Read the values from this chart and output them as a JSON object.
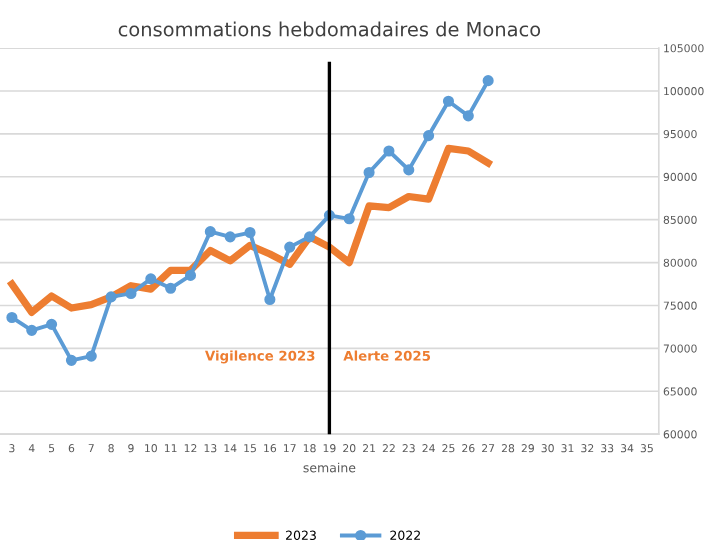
{
  "chart_data": {
    "type": "line",
    "title": "consommations hebdomadaires de Monaco",
    "xlabel": "semaine",
    "x": [
      3,
      4,
      5,
      6,
      7,
      8,
      9,
      10,
      11,
      12,
      13,
      14,
      15,
      16,
      17,
      18,
      19,
      20,
      21,
      22,
      23,
      24,
      25,
      26,
      27
    ],
    "series": [
      {
        "name": "2023",
        "color": "#ed7d31",
        "marker": "none",
        "values": [
          77500,
          74200,
          76100,
          74700,
          75100,
          76000,
          77300,
          76900,
          79100,
          79100,
          81400,
          80200,
          82000,
          81000,
          79800,
          83000,
          81800,
          80000,
          86600,
          86400,
          87700,
          87400,
          93300,
          93000,
          91600
        ]
      },
      {
        "name": "2022",
        "color": "#5b9bd5",
        "marker": "circle",
        "values": [
          73600,
          72100,
          72800,
          68600,
          69100,
          76000,
          76400,
          78100,
          77000,
          78500,
          83600,
          83000,
          83500,
          75700,
          81800,
          83000,
          85500,
          85100,
          90500,
          93000,
          90800,
          94800,
          98800,
          97100,
          101200
        ]
      }
    ],
    "xlim": [
      2.4,
      35.6
    ],
    "xticks": [
      3,
      4,
      5,
      6,
      7,
      8,
      9,
      10,
      11,
      12,
      13,
      14,
      15,
      16,
      17,
      18,
      19,
      20,
      21,
      22,
      23,
      24,
      25,
      26,
      27,
      28,
      29,
      30,
      31,
      32,
      33,
      34,
      35
    ],
    "ylim": [
      60000,
      105000
    ],
    "yticks": [
      60000,
      65000,
      70000,
      75000,
      80000,
      85000,
      90000,
      95000,
      100000,
      105000
    ],
    "ref_lines": [
      {
        "axis": "x",
        "value": 19,
        "color": "#000000"
      }
    ],
    "annotations": [
      "Vigilence 2023",
      "Alerte 2025"
    ],
    "grid": "y",
    "legend": "bottom"
  }
}
